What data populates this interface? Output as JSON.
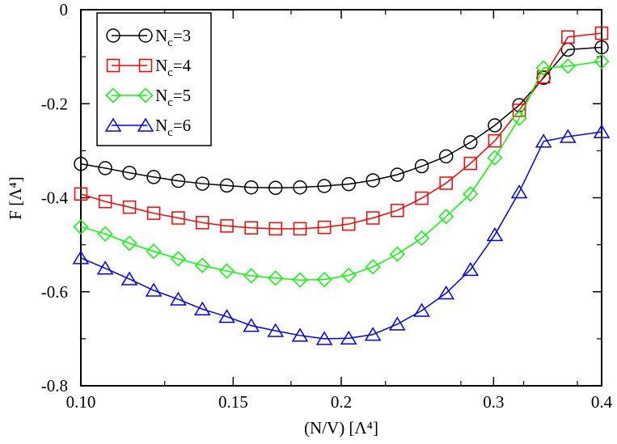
{
  "chart_data": {
    "type": "line",
    "title": "",
    "xlabel": "(N/V) [Λ⁴]",
    "ylabel": "F [Λ⁴]",
    "xscale": "log",
    "xlim": [
      0.1,
      0.4
    ],
    "ylim": [
      -0.8,
      0.0
    ],
    "xticks": [
      0.1,
      0.15,
      0.2,
      0.3,
      0.4
    ],
    "xtick_labels": [
      "0.10",
      "0.15",
      "0.2",
      "0.3",
      "0.4"
    ],
    "yticks": [
      -0.8,
      -0.6,
      -0.4,
      -0.2,
      0.0
    ],
    "ytick_labels": [
      "-0.8",
      "-0.6",
      "-0.4",
      "-0.2",
      "0"
    ],
    "grid": false,
    "legend_position": "top-left",
    "series": [
      {
        "name": "Nc=3",
        "label_main": "N",
        "label_sub": "c",
        "label_rest": "=3",
        "color": "#000000",
        "marker": "circle",
        "x": [
          0.1,
          0.1067,
          0.1138,
          0.1214,
          0.1296,
          0.1382,
          0.1475,
          0.1574,
          0.1679,
          0.1792,
          0.1912,
          0.204,
          0.2176,
          0.2322,
          0.2478,
          0.2644,
          0.2821,
          0.301,
          0.3212,
          0.3427,
          0.3657,
          0.4
        ],
        "y": [
          -0.328,
          -0.337,
          -0.347,
          -0.356,
          -0.364,
          -0.37,
          -0.374,
          -0.378,
          -0.379,
          -0.378,
          -0.375,
          -0.371,
          -0.363,
          -0.351,
          -0.333,
          -0.312,
          -0.282,
          -0.246,
          -0.203,
          -0.145,
          -0.085,
          -0.08
        ]
      },
      {
        "name": "Nc=4",
        "label_main": "N",
        "label_sub": "c",
        "label_rest": "=4",
        "color": "#ff0000",
        "marker": "square",
        "x": [
          0.1,
          0.1067,
          0.1138,
          0.1214,
          0.1296,
          0.1382,
          0.1475,
          0.1574,
          0.1679,
          0.1792,
          0.1912,
          0.204,
          0.2176,
          0.2322,
          0.2478,
          0.2644,
          0.2821,
          0.301,
          0.3212,
          0.3427,
          0.3657,
          0.4
        ],
        "y": [
          -0.392,
          -0.408,
          -0.42,
          -0.433,
          -0.443,
          -0.453,
          -0.46,
          -0.464,
          -0.466,
          -0.466,
          -0.463,
          -0.456,
          -0.443,
          -0.427,
          -0.401,
          -0.369,
          -0.327,
          -0.279,
          -0.214,
          -0.143,
          -0.058,
          -0.05
        ]
      },
      {
        "name": "Nc=5",
        "label_main": "N",
        "label_sub": "c",
        "label_rest": "=5",
        "color": "#00ff00",
        "marker": "diamond",
        "x": [
          0.1,
          0.1067,
          0.1138,
          0.1214,
          0.1296,
          0.1382,
          0.1475,
          0.1574,
          0.1679,
          0.1792,
          0.1912,
          0.204,
          0.2176,
          0.2322,
          0.2478,
          0.2644,
          0.2821,
          0.301,
          0.3212,
          0.3427,
          0.3657,
          0.4
        ],
        "y": [
          -0.462,
          -0.477,
          -0.497,
          -0.514,
          -0.53,
          -0.544,
          -0.556,
          -0.566,
          -0.571,
          -0.575,
          -0.574,
          -0.565,
          -0.547,
          -0.52,
          -0.486,
          -0.44,
          -0.392,
          -0.315,
          -0.231,
          -0.124,
          -0.12,
          -0.11
        ]
      },
      {
        "name": "Nc=6",
        "label_main": "N",
        "label_sub": "c",
        "label_rest": "=6",
        "color": "#0000ff",
        "marker": "triangle",
        "x": [
          0.1,
          0.1067,
          0.1138,
          0.1214,
          0.1296,
          0.1382,
          0.1475,
          0.1574,
          0.1679,
          0.1792,
          0.1912,
          0.204,
          0.2176,
          0.2322,
          0.2478,
          0.2644,
          0.2821,
          0.301,
          0.3212,
          0.3427,
          0.3657,
          0.4
        ],
        "y": [
          -0.528,
          -0.55,
          -0.573,
          -0.597,
          -0.616,
          -0.637,
          -0.653,
          -0.672,
          -0.683,
          -0.693,
          -0.7,
          -0.699,
          -0.691,
          -0.669,
          -0.64,
          -0.603,
          -0.553,
          -0.479,
          -0.388,
          -0.28,
          -0.27,
          -0.26
        ]
      }
    ]
  }
}
